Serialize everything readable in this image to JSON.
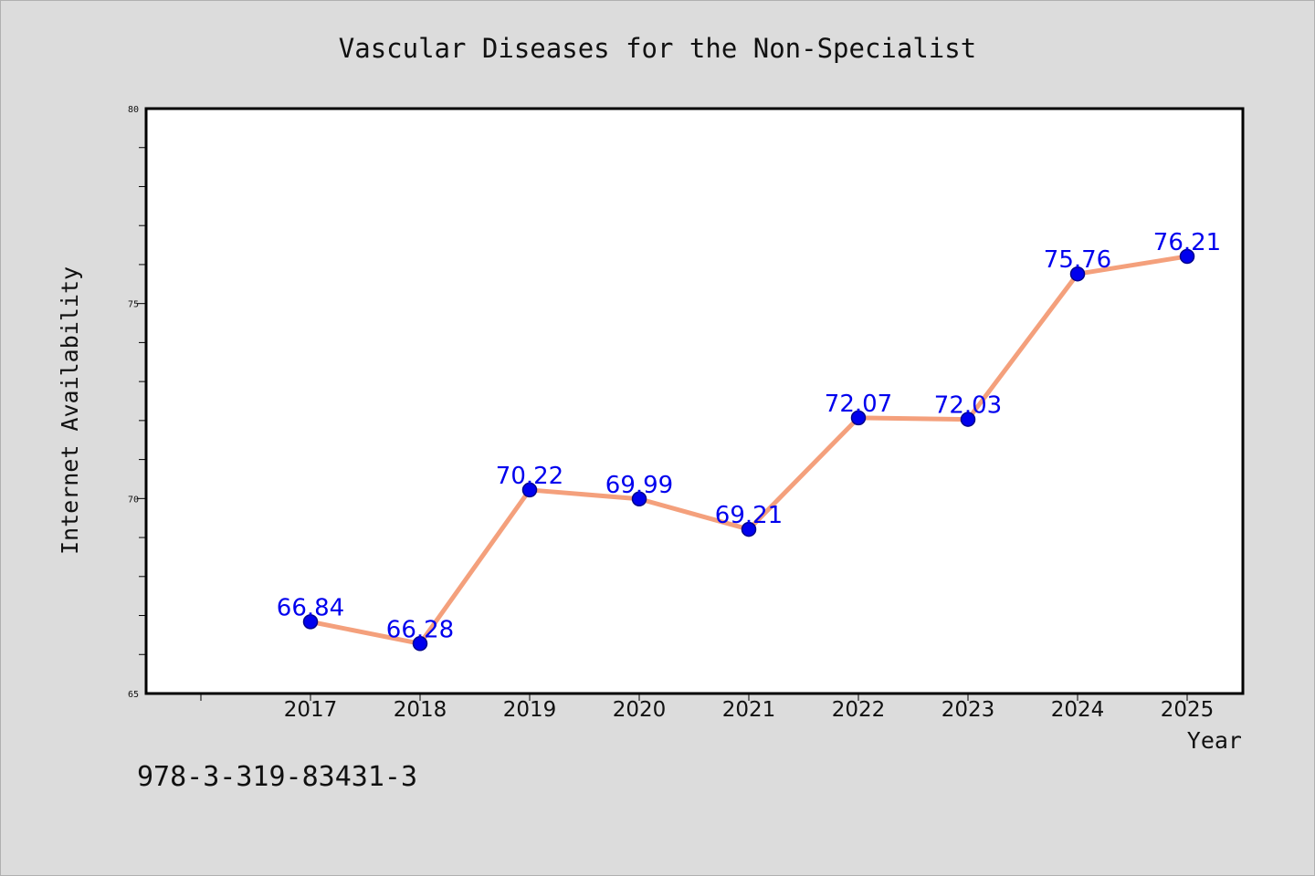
{
  "chart_data": {
    "type": "line",
    "title": "Vascular Diseases for the Non-Specialist",
    "xlabel": "Year",
    "ylabel": "Internet Availability",
    "categories": [
      "2017",
      "2018",
      "2019",
      "2020",
      "2021",
      "2022",
      "2023",
      "2024",
      "2025"
    ],
    "series": [
      {
        "values": [
          66.84,
          66.28,
          70.22,
          69.99,
          69.21,
          72.07,
          72.03,
          75.76,
          76.21
        ],
        "labels": [
          "66.84",
          "66.28",
          "70.22",
          "69.99",
          "69.21",
          "72.07",
          "72.03",
          "75.76",
          "76.21"
        ]
      }
    ],
    "ylim": [
      65,
      80
    ],
    "yticks": [
      "65",
      "70",
      "75",
      "80"
    ],
    "grid": false,
    "legend": "none",
    "colors": {
      "line": "#f4a07c",
      "marker": "#0000ee",
      "marker_edge": "#00008b",
      "data_label": "#0000ee",
      "plot_background": "#ffffff",
      "page_background": "#dcdcdc"
    }
  },
  "footer": {
    "isbn": "978-3-319-83431-3"
  }
}
